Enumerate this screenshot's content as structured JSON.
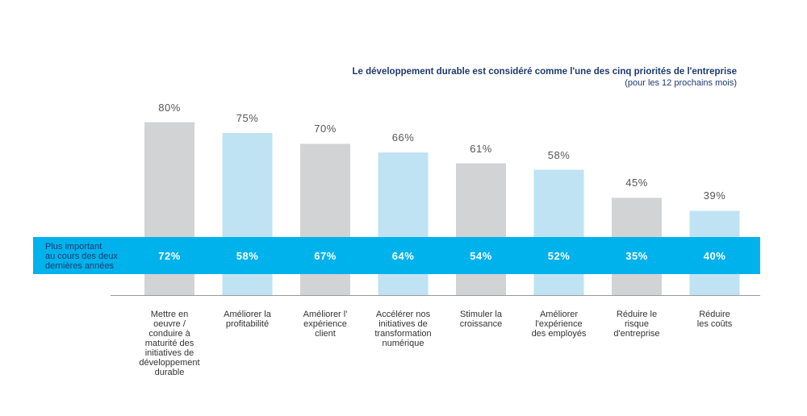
{
  "chart_data": {
    "type": "bar",
    "title": "Le développement durable est considéré comme l'une des cinq priorités de l'entreprise",
    "subtitle": "(pour les 12 prochains mois)",
    "categories": [
      "Mettre en oeuvre / conduire à maturité des initiatives de développement durable",
      "Améliorer la profitabilité",
      "Améliorer l' expérience client",
      "Accélérer nos initiatives de transformation numérique",
      "Stimuler la croissance",
      "Améliorer l'expérience des employés",
      "Réduire le risque d'entreprise",
      "Réduire les coûts"
    ],
    "category_lines": [
      [
        "Mettre en",
        "oeuvre /",
        "conduire à",
        "maturité des",
        "initiatives de",
        "développement",
        "durable"
      ],
      [
        "Améliorer la",
        "profitabilité"
      ],
      [
        "Améliorer l'",
        "expérience",
        "client"
      ],
      [
        "Accélérer nos",
        "initiatives de",
        "transformation",
        "numérique"
      ],
      [
        "Stimuler la",
        "croissance"
      ],
      [
        "Améliorer",
        "l'expérience",
        "des employés"
      ],
      [
        "Réduire le",
        "risque",
        "d'entreprise"
      ],
      [
        "Réduire",
        "les coûts"
      ]
    ],
    "series": [
      {
        "values": [
          80,
          75,
          70,
          66,
          61,
          58,
          45,
          39
        ],
        "value_labels": [
          "80%",
          "75%",
          "70%",
          "66%",
          "61%",
          "58%",
          "45%",
          "39%"
        ]
      },
      {
        "name": "Plus important au cours des deux dernières années",
        "values": [
          72,
          58,
          67,
          64,
          54,
          52,
          35,
          40
        ],
        "value_labels": [
          "72%",
          "58%",
          "67%",
          "64%",
          "54%",
          "52%",
          "35%",
          "40%"
        ]
      }
    ],
    "band_label_lines": [
      "Plus important",
      "au cours des deux",
      "dernières années"
    ],
    "colors": {
      "bar_gray": "#d2d3d5",
      "bar_blue": "#bfe3f3",
      "band": "#00b2ec",
      "title": "#1d3a6e",
      "axis": "#999999"
    },
    "legend": "none",
    "grid": false
  }
}
